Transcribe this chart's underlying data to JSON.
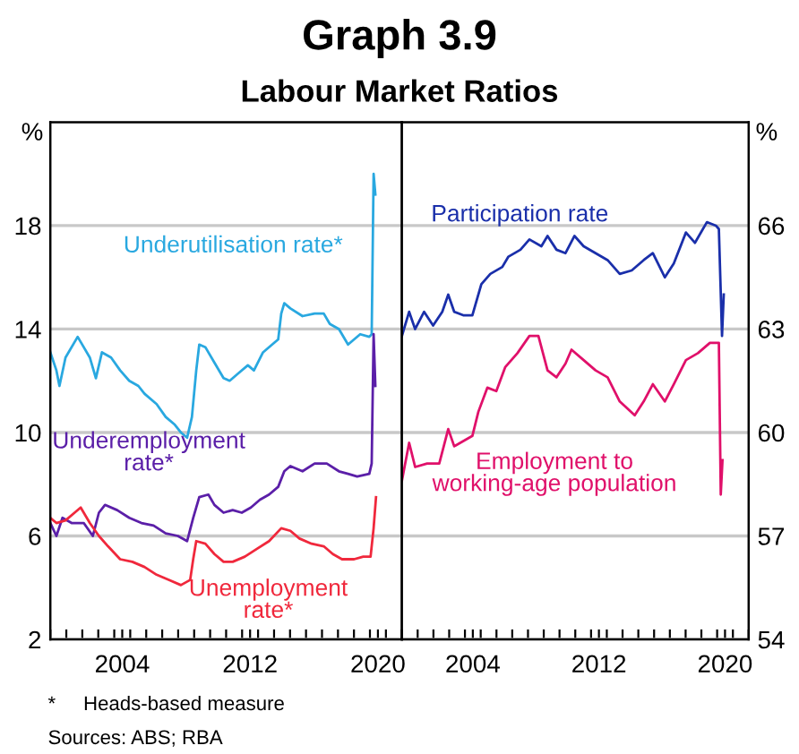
{
  "chart_data": [
    {
      "type": "line",
      "title": "Graph 3.9",
      "subtitle": "Labour Market Ratios",
      "ylabel": "%",
      "grid": "y",
      "legend": false,
      "xlim": [
        2000,
        2022
      ],
      "ylim": [
        2,
        22
      ],
      "yticks": [
        2,
        6,
        10,
        14,
        18
      ],
      "xticks": [
        {
          "value": 2000,
          "label": null
        },
        {
          "value": 2001,
          "label": null
        },
        {
          "value": 2002,
          "label": null
        },
        {
          "value": 2003,
          "label": null
        },
        {
          "value": 2004,
          "label": null
        },
        {
          "value": 2004.5,
          "label": "2004"
        },
        {
          "value": 2005,
          "label": null
        },
        {
          "value": 2006,
          "label": null
        },
        {
          "value": 2007,
          "label": null
        },
        {
          "value": 2008,
          "label": null
        },
        {
          "value": 2009,
          "label": null
        },
        {
          "value": 2010,
          "label": null
        },
        {
          "value": 2011,
          "label": null
        },
        {
          "value": 2012,
          "label": null
        },
        {
          "value": 2012.5,
          "label": "2012"
        },
        {
          "value": 2013,
          "label": null
        },
        {
          "value": 2014,
          "label": null
        },
        {
          "value": 2015,
          "label": null
        },
        {
          "value": 2016,
          "label": null
        },
        {
          "value": 2017,
          "label": null
        },
        {
          "value": 2018,
          "label": null
        },
        {
          "value": 2019,
          "label": null
        },
        {
          "value": 2020,
          "label": null
        },
        {
          "value": 2020.5,
          "label": "2020"
        },
        {
          "value": 2021,
          "label": null
        },
        {
          "value": 2022,
          "label": null
        }
      ],
      "annotations": [
        "*     Heads-based measure",
        "Sources: ABS; RBA"
      ],
      "series": [
        {
          "name": "Underutilisation rate*",
          "color": "#29a8e0",
          "x": [
            2000.0,
            2000.38,
            2000.57,
            2000.95,
            2001.71,
            2001.9,
            2002.47,
            2002.85,
            2003.23,
            2003.8,
            2004.37,
            2004.94,
            2005.51,
            2005.89,
            2006.65,
            2007.22,
            2007.79,
            2008.17,
            2008.56,
            2008.86,
            2009.13,
            2009.32,
            2009.7,
            2010.27,
            2010.84,
            2011.22,
            2011.79,
            2012.36,
            2012.74,
            2013.31,
            2013.88,
            2014.26,
            2014.45,
            2014.64,
            2015.02,
            2015.78,
            2016.54,
            2017.11,
            2017.49,
            2018.06,
            2018.63,
            2019.01,
            2019.39,
            2019.96,
            2020.11,
            2020.23,
            2020.34
          ],
          "values": [
            13.1,
            12.4,
            11.8,
            12.9,
            13.7,
            13.5,
            12.9,
            12.1,
            13.1,
            12.9,
            12.4,
            12.0,
            11.8,
            11.5,
            11.1,
            10.6,
            10.3,
            10.0,
            9.8,
            10.6,
            12.4,
            13.4,
            13.3,
            12.7,
            12.1,
            12.0,
            12.3,
            12.6,
            12.4,
            13.1,
            13.4,
            13.6,
            14.6,
            15.0,
            14.8,
            14.5,
            14.6,
            14.6,
            14.2,
            14.0,
            13.4,
            13.6,
            13.8,
            13.7,
            13.8,
            20.0,
            19.2
          ]
        },
        {
          "name": "Underemployment\nrate*",
          "color": "#5b1fa8",
          "x": [
            2000.0,
            2000.38,
            2000.76,
            2001.33,
            2002.09,
            2002.66,
            2003.04,
            2003.42,
            2004.18,
            2004.94,
            2005.7,
            2006.46,
            2007.22,
            2007.98,
            2008.56,
            2008.94,
            2009.32,
            2009.89,
            2010.27,
            2010.84,
            2011.41,
            2011.98,
            2012.55,
            2013.12,
            2013.69,
            2014.26,
            2014.64,
            2015.02,
            2015.78,
            2016.54,
            2017.3,
            2018.06,
            2018.63,
            2019.2,
            2019.96,
            2020.11,
            2020.23,
            2020.34
          ],
          "values": [
            6.5,
            6.0,
            6.7,
            6.5,
            6.5,
            6.0,
            6.9,
            7.2,
            7.0,
            6.7,
            6.5,
            6.4,
            6.1,
            6.0,
            5.8,
            6.7,
            7.5,
            7.6,
            7.2,
            6.9,
            7.0,
            6.9,
            7.1,
            7.4,
            7.6,
            7.9,
            8.5,
            8.7,
            8.5,
            8.8,
            8.8,
            8.5,
            8.4,
            8.3,
            8.4,
            8.8,
            13.8,
            11.8
          ]
        },
        {
          "name": "Unemployment\nrate*",
          "color": "#f0283c",
          "x": [
            2000.0,
            2000.38,
            2000.95,
            2001.52,
            2001.9,
            2002.47,
            2003.04,
            2003.61,
            2004.37,
            2005.13,
            2005.89,
            2006.65,
            2007.41,
            2008.17,
            2008.75,
            2008.94,
            2009.13,
            2009.7,
            2010.27,
            2010.84,
            2011.41,
            2012.17,
            2012.93,
            2013.69,
            2014.45,
            2015.02,
            2015.59,
            2016.35,
            2017.11,
            2017.68,
            2018.25,
            2019.01,
            2019.58,
            2020.04,
            2020.23,
            2020.38
          ],
          "values": [
            6.7,
            6.5,
            6.6,
            6.9,
            7.1,
            6.5,
            6.0,
            5.6,
            5.1,
            5.0,
            4.8,
            4.5,
            4.3,
            4.1,
            4.3,
            5.1,
            5.8,
            5.7,
            5.3,
            5.0,
            5.0,
            5.2,
            5.5,
            5.8,
            6.3,
            6.2,
            5.9,
            5.7,
            5.6,
            5.3,
            5.1,
            5.1,
            5.2,
            5.2,
            6.3,
            7.5
          ]
        }
      ]
    },
    {
      "type": "line",
      "ylabel": "%",
      "grid": "y",
      "legend": false,
      "xlim": [
        2000,
        2022
      ],
      "ylim": [
        54,
        69
      ],
      "yticks": [
        54,
        57,
        60,
        63,
        66
      ],
      "xticks": [
        {
          "value": 2000,
          "label": null
        },
        {
          "value": 2001,
          "label": null
        },
        {
          "value": 2002,
          "label": null
        },
        {
          "value": 2003,
          "label": null
        },
        {
          "value": 2004,
          "label": null
        },
        {
          "value": 2004.5,
          "label": "2004"
        },
        {
          "value": 2005,
          "label": null
        },
        {
          "value": 2006,
          "label": null
        },
        {
          "value": 2007,
          "label": null
        },
        {
          "value": 2008,
          "label": null
        },
        {
          "value": 2009,
          "label": null
        },
        {
          "value": 2010,
          "label": null
        },
        {
          "value": 2011,
          "label": null
        },
        {
          "value": 2012,
          "label": null
        },
        {
          "value": 2012.5,
          "label": "2012"
        },
        {
          "value": 2013,
          "label": null
        },
        {
          "value": 2014,
          "label": null
        },
        {
          "value": 2015,
          "label": null
        },
        {
          "value": 2016,
          "label": null
        },
        {
          "value": 2017,
          "label": null
        },
        {
          "value": 2018,
          "label": null
        },
        {
          "value": 2019,
          "label": null
        },
        {
          "value": 2020,
          "label": null
        },
        {
          "value": 2020.5,
          "label": "2020"
        },
        {
          "value": 2021,
          "label": null
        },
        {
          "value": 2022,
          "label": null
        }
      ],
      "series": [
        {
          "name": "Participation rate",
          "color": "#1a2faa",
          "x": [
            2000.0,
            2000.46,
            2000.84,
            2001.41,
            2001.98,
            2002.56,
            2002.94,
            2003.32,
            2003.89,
            2004.47,
            2005.04,
            2005.61,
            2006.37,
            2006.76,
            2007.52,
            2008.09,
            2008.85,
            2009.24,
            2009.81,
            2010.38,
            2010.95,
            2011.53,
            2012.29,
            2013.05,
            2013.82,
            2014.58,
            2015.34,
            2015.92,
            2016.68,
            2017.25,
            2018.02,
            2018.59,
            2019.35,
            2019.92,
            2020.11,
            2020.31,
            2020.42
          ],
          "values": [
            62.8,
            63.5,
            63.0,
            63.5,
            63.1,
            63.5,
            64.0,
            63.5,
            63.4,
            63.4,
            64.3,
            64.6,
            64.8,
            65.1,
            65.3,
            65.6,
            65.4,
            65.7,
            65.3,
            65.2,
            65.7,
            65.4,
            65.2,
            65.0,
            64.6,
            64.7,
            65.0,
            65.2,
            64.5,
            64.9,
            65.8,
            65.5,
            66.1,
            66.0,
            65.9,
            62.8,
            64.0
          ]
        },
        {
          "name": "Employment to\nworking-age population",
          "color": "#e0106a",
          "x": [
            2000.0,
            2000.46,
            2000.84,
            2001.6,
            2002.37,
            2002.94,
            2003.32,
            2004.47,
            2004.85,
            2005.42,
            2005.99,
            2006.56,
            2007.33,
            2008.09,
            2008.66,
            2009.24,
            2009.81,
            2010.38,
            2010.76,
            2011.53,
            2012.29,
            2013.05,
            2013.82,
            2014.77,
            2015.34,
            2015.92,
            2016.68,
            2017.25,
            2018.02,
            2018.78,
            2019.54,
            2020.11,
            2020.23,
            2020.34
          ],
          "values": [
            58.6,
            59.7,
            59.0,
            59.1,
            59.1,
            60.1,
            59.6,
            59.9,
            60.6,
            61.3,
            61.2,
            61.9,
            62.3,
            62.8,
            62.8,
            61.8,
            61.6,
            62.0,
            62.4,
            62.1,
            61.8,
            61.6,
            60.9,
            60.5,
            60.9,
            61.4,
            60.9,
            61.4,
            62.1,
            62.3,
            62.6,
            62.6,
            58.2,
            59.2
          ]
        }
      ]
    }
  ]
}
